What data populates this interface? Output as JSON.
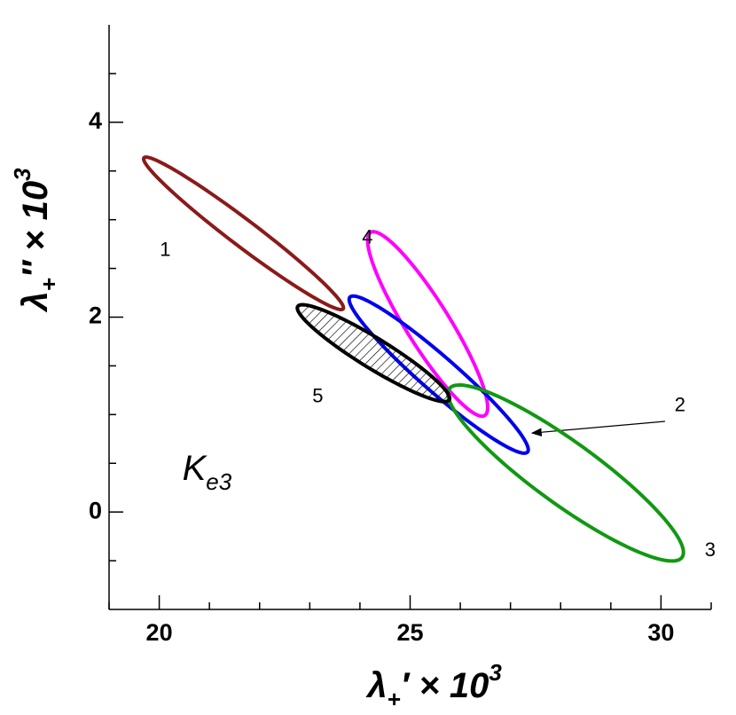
{
  "chart_data": {
    "type": "ellipse",
    "xlabel": [
      {
        "text": "λ"
      },
      {
        "text": "+",
        "pos": "sub"
      },
      {
        "text": "′"
      },
      {
        "text": " × "
      },
      {
        "text": "10"
      },
      {
        "text": "3",
        "pos": "sup"
      }
    ],
    "ylabel": [
      {
        "text": "λ"
      },
      {
        "text": "+",
        "pos": "sub"
      },
      {
        "text": "″"
      },
      {
        "text": " × "
      },
      {
        "text": "10"
      },
      {
        "text": "3",
        "pos": "sup"
      }
    ],
    "xlim": [
      19,
      31
    ],
    "ylim": [
      -1,
      5
    ],
    "xticks": [
      20,
      25,
      30
    ],
    "yticks": [
      0,
      2,
      4
    ],
    "xticks_minor": [
      19,
      21,
      22,
      23,
      24,
      26,
      27,
      28,
      29,
      31
    ],
    "yticks_minor": [
      -0.5,
      0.5,
      1,
      1.5,
      2.5,
      3,
      3.5,
      4.5
    ],
    "ellipses": [
      {
        "label": "1",
        "color": "#8b1a1a",
        "center": [
          21.68,
          2.86
        ],
        "u": [
          1.985,
          -0.775
        ],
        "v": [
          -0.16,
          -0.108
        ],
        "label_at": [
          20.12,
          2.68
        ]
      },
      {
        "label": "4",
        "color": "#ff00ff",
        "center": [
          25.35,
          1.93
        ],
        "u": [
          1.15,
          -0.935
        ],
        "v": [
          -0.33,
          -0.15
        ],
        "label_at": [
          24.15,
          2.81
        ]
      },
      {
        "label": "2",
        "color": "#0000ee",
        "center": [
          25.57,
          1.41
        ],
        "u": [
          1.77,
          -0.795
        ],
        "v": [
          -0.23,
          -0.137
        ],
        "label_at": [
          30.38,
          1.09
        ],
        "arrow_from": [
          30.08,
          0.93
        ],
        "arrow_to": [
          27.43,
          0.81
        ]
      },
      {
        "label": "3",
        "color": "#119911",
        "center": [
          28.1,
          0.4
        ],
        "u": [
          2.32,
          -0.865
        ],
        "v": [
          -0.36,
          -0.26
        ],
        "label_at": [
          30.98,
          -0.4
        ]
      },
      {
        "label": "5",
        "color": "#000000",
        "fill": "hatch",
        "center": [
          24.27,
          1.63
        ],
        "u": [
          1.51,
          -0.48
        ],
        "v": [
          -0.16,
          -0.13
        ],
        "label_at": [
          23.16,
          1.18
        ]
      }
    ],
    "note": {
      "parts": [
        {
          "text": "K"
        },
        {
          "text": "e3",
          "pos": "sub"
        }
      ],
      "at": [
        20.46,
        0.43
      ]
    }
  }
}
